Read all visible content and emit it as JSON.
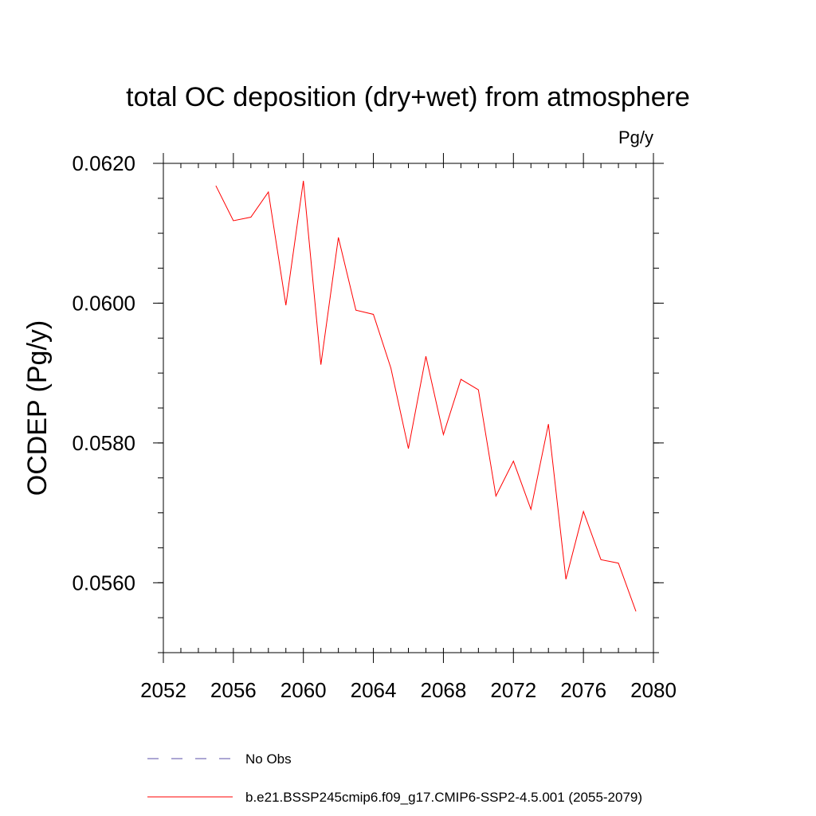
{
  "chart_data": {
    "type": "line",
    "title": "total OC deposition (dry+wet) from atmosphere",
    "units_label": "Pg/y",
    "ylabel": "OCDEP  (Pg/y)",
    "xlabel": "",
    "xlim": [
      2052,
      2080
    ],
    "ylim": [
      0.055,
      0.062
    ],
    "x_ticks": [
      2052,
      2056,
      2060,
      2064,
      2068,
      2072,
      2076,
      2080
    ],
    "x_tick_labels": [
      "2052",
      "2056",
      "2060",
      "2064",
      "2068",
      "2072",
      "2076",
      "2080"
    ],
    "y_ticks": [
      0.056,
      0.058,
      0.06,
      0.062
    ],
    "y_tick_labels": [
      "0.0560",
      "0.0580",
      "0.0600",
      "0.0620"
    ],
    "x_minor_step": 1,
    "y_minor_step": 0.0005,
    "grid": false,
    "legend_position": "bottom",
    "series": [
      {
        "name": "No Obs",
        "color": "#5a4fa8",
        "dash": "dashed",
        "x": [],
        "y": []
      },
      {
        "name": "b.e21.BSSP245cmip6.f09_g17.CMIP6-SSP2-4.5.001 (2055-2079)",
        "color": "#ff0000",
        "dash": "solid",
        "x": [
          2055,
          2056,
          2057,
          2058,
          2059,
          2060,
          2061,
          2062,
          2063,
          2064,
          2065,
          2066,
          2067,
          2068,
          2069,
          2070,
          2071,
          2072,
          2073,
          2074,
          2075,
          2076,
          2077,
          2078,
          2079
        ],
        "y": [
          0.06168,
          0.06118,
          0.06123,
          0.06159,
          0.05997,
          0.06175,
          0.05912,
          0.06094,
          0.0599,
          0.05984,
          0.05907,
          0.05792,
          0.05924,
          0.05812,
          0.05891,
          0.05876,
          0.05724,
          0.05774,
          0.05705,
          0.05827,
          0.05605,
          0.05702,
          0.05633,
          0.05628,
          0.05559
        ]
      }
    ]
  }
}
